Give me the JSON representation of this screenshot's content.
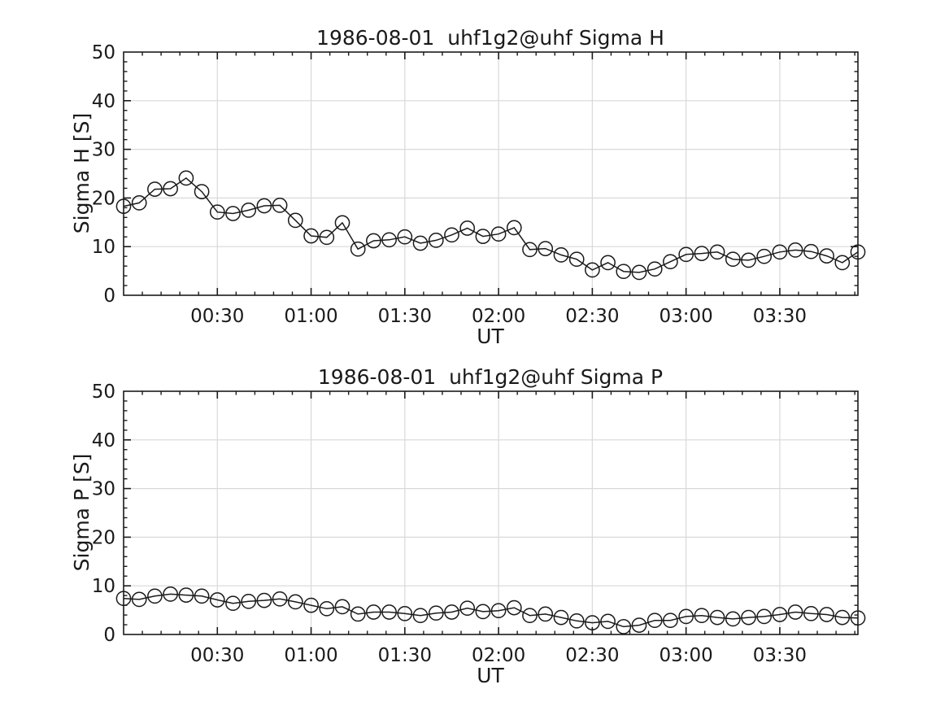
{
  "figure": {
    "background": "#ffffff",
    "text_color": "#1a1a1a",
    "grid_color": "#d9d9d9",
    "line_color": "#1a1a1a"
  },
  "chart_data": [
    {
      "type": "line",
      "title": "1986-08-01  uhf1g2@uhf Sigma H",
      "xlabel": "UT",
      "ylabel": "Sigma H [S]",
      "ylim": [
        0,
        50
      ],
      "yticks": [
        0,
        10,
        20,
        30,
        40,
        50
      ],
      "y_minor_step": 2,
      "xlim_minutes": [
        0,
        235
      ],
      "xticks": [
        {
          "minute": 30,
          "label": "00:30"
        },
        {
          "minute": 60,
          "label": "01:00"
        },
        {
          "minute": 90,
          "label": "01:30"
        },
        {
          "minute": 120,
          "label": "02:00"
        },
        {
          "minute": 150,
          "label": "02:30"
        },
        {
          "minute": 180,
          "label": "03:00"
        },
        {
          "minute": 210,
          "label": "03:30"
        }
      ],
      "x_minor_step_minutes": 6,
      "grid": true,
      "legend": null,
      "marker": "open-circle",
      "times": [
        "00:00",
        "00:05",
        "00:10",
        "00:15",
        "00:20",
        "00:25",
        "00:30",
        "00:35",
        "00:40",
        "00:45",
        "00:50",
        "00:55",
        "01:00",
        "01:05",
        "01:10",
        "01:15",
        "01:20",
        "01:25",
        "01:30",
        "01:35",
        "01:40",
        "01:45",
        "01:50",
        "01:55",
        "02:00",
        "02:05",
        "02:10",
        "02:15",
        "02:20",
        "02:25",
        "02:30",
        "02:35",
        "02:40",
        "02:45",
        "02:50",
        "02:55",
        "03:00",
        "03:05",
        "03:10",
        "03:15",
        "03:20",
        "03:25",
        "03:30",
        "03:35",
        "03:40",
        "03:45",
        "03:50",
        "03:55"
      ],
      "values": [
        18.3,
        19.0,
        21.8,
        21.9,
        24.1,
        21.3,
        17.1,
        16.8,
        17.5,
        18.4,
        18.5,
        15.4,
        12.2,
        11.9,
        14.9,
        9.5,
        11.2,
        11.4,
        12.0,
        10.7,
        11.3,
        12.4,
        13.8,
        12.1,
        12.6,
        13.9,
        9.4,
        9.6,
        8.3,
        7.4,
        5.2,
        6.7,
        4.9,
        4.7,
        5.4,
        6.9,
        8.4,
        8.6,
        8.9,
        7.4,
        7.2,
        8.0,
        8.9,
        9.3,
        9.0,
        8.1,
        6.7,
        8.9
      ]
    },
    {
      "type": "line",
      "title": "1986-08-01  uhf1g2@uhf Sigma P",
      "xlabel": "UT",
      "ylabel": "Sigma P [S]",
      "ylim": [
        0,
        50
      ],
      "yticks": [
        0,
        10,
        20,
        30,
        40,
        50
      ],
      "y_minor_step": 2,
      "xlim_minutes": [
        0,
        235
      ],
      "xticks": [
        {
          "minute": 30,
          "label": "00:30"
        },
        {
          "minute": 60,
          "label": "01:00"
        },
        {
          "minute": 90,
          "label": "01:30"
        },
        {
          "minute": 120,
          "label": "02:00"
        },
        {
          "minute": 150,
          "label": "02:30"
        },
        {
          "minute": 180,
          "label": "03:00"
        },
        {
          "minute": 210,
          "label": "03:30"
        }
      ],
      "x_minor_step_minutes": 6,
      "grid": true,
      "legend": null,
      "marker": "open-circle",
      "times": [
        "00:00",
        "00:05",
        "00:10",
        "00:15",
        "00:20",
        "00:25",
        "00:30",
        "00:35",
        "00:40",
        "00:45",
        "00:50",
        "00:55",
        "01:00",
        "01:05",
        "01:10",
        "01:15",
        "01:20",
        "01:25",
        "01:30",
        "01:35",
        "01:40",
        "01:45",
        "01:50",
        "01:55",
        "02:00",
        "02:05",
        "02:10",
        "02:15",
        "02:20",
        "02:25",
        "02:30",
        "02:35",
        "02:40",
        "02:45",
        "02:50",
        "02:55",
        "03:00",
        "03:05",
        "03:10",
        "03:15",
        "03:20",
        "03:25",
        "03:30",
        "03:35",
        "03:40",
        "03:45",
        "03:50",
        "03:55"
      ],
      "values": [
        7.4,
        7.2,
        7.9,
        8.3,
        8.1,
        7.9,
        7.1,
        6.4,
        6.8,
        7.0,
        7.3,
        6.7,
        6.0,
        5.3,
        5.7,
        4.2,
        4.6,
        4.6,
        4.3,
        3.9,
        4.4,
        4.6,
        5.4,
        4.7,
        4.9,
        5.5,
        3.9,
        4.2,
        3.5,
        2.8,
        2.4,
        2.7,
        1.6,
        1.9,
        2.9,
        2.9,
        3.7,
        3.9,
        3.5,
        3.2,
        3.5,
        3.7,
        4.1,
        4.6,
        4.3,
        4.1,
        3.5,
        3.4
      ]
    }
  ]
}
